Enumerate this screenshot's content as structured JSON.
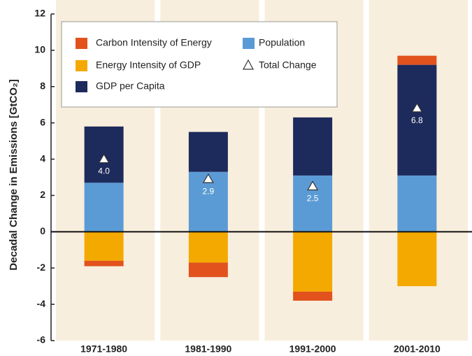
{
  "chart_data": {
    "type": "stacked-bar",
    "y_label": "Decadal Change in Emissions [GtCO₂]",
    "categories": [
      "1971-1980",
      "1981-1990",
      "1991-2000",
      "2001-2010"
    ],
    "series": [
      {
        "name": "Population",
        "color": "#5b9bd5",
        "values": [
          2.7,
          3.3,
          3.1,
          3.1
        ]
      },
      {
        "name": "GDP per Capita",
        "color": "#1d2a5c",
        "values": [
          3.1,
          2.2,
          3.2,
          6.1
        ]
      },
      {
        "name": "Energy Intensity of GDP",
        "color": "#f4a900",
        "values": [
          -1.6,
          -1.7,
          -3.3,
          -3.0
        ]
      },
      {
        "name": "Carbon Intensity of Energy",
        "color": "#e1521d",
        "values": [
          -0.3,
          -0.8,
          -0.5,
          0.5
        ]
      }
    ],
    "total": {
      "name": "Total Change",
      "values": [
        4.0,
        2.9,
        2.5,
        6.8
      ],
      "value_labels": [
        "4.0",
        "2.9",
        "2.5",
        "6.8"
      ]
    },
    "ylim": [
      -6,
      12
    ],
    "yticks": [
      -6,
      -4,
      -2,
      0,
      2,
      4,
      6,
      8,
      10,
      12
    ]
  }
}
